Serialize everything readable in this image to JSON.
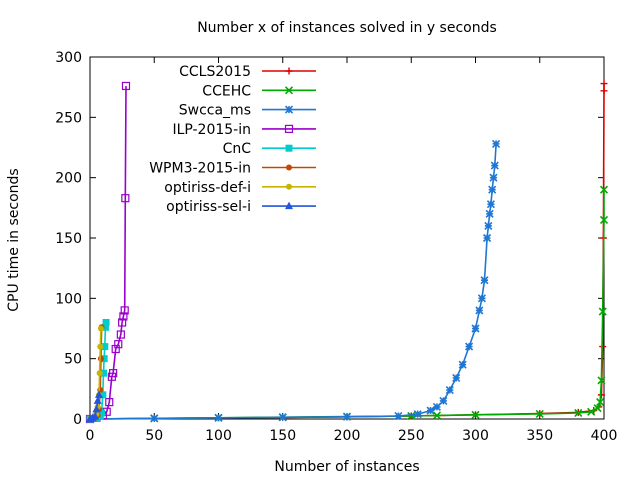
{
  "chart_data": {
    "type": "line",
    "title": "Number x of instances solved in y seconds",
    "xlabel": "Number of instances",
    "ylabel": "CPU time in seconds",
    "xlim": [
      0,
      400
    ],
    "ylim": [
      0,
      300
    ],
    "x_ticks": [
      0,
      50,
      100,
      150,
      200,
      250,
      300,
      350,
      400
    ],
    "y_ticks": [
      0,
      50,
      100,
      150,
      200,
      250,
      300
    ],
    "grid": false,
    "legend_position": "top-right",
    "series": [
      {
        "name": "CCLS2015",
        "color": "#dd0000",
        "marker": "plus",
        "points": [
          [
            0,
            0
          ],
          [
            50,
            0.5
          ],
          [
            100,
            0.9
          ],
          [
            150,
            1.3
          ],
          [
            200,
            1.8
          ],
          [
            250,
            2.5
          ],
          [
            300,
            3.5
          ],
          [
            350,
            4.5
          ],
          [
            380,
            5.5
          ],
          [
            392,
            7
          ],
          [
            396,
            10
          ],
          [
            398,
            20
          ],
          [
            399,
            60
          ],
          [
            399.5,
            150
          ],
          [
            400,
            272
          ],
          [
            400,
            278
          ]
        ]
      },
      {
        "name": "CCEHC",
        "color": "#00aa00",
        "marker": "x",
        "points": [
          [
            0,
            0
          ],
          [
            50,
            0.5
          ],
          [
            100,
            1
          ],
          [
            150,
            1.5
          ],
          [
            200,
            2
          ],
          [
            250,
            2.5
          ],
          [
            270,
            3
          ],
          [
            300,
            3.5
          ],
          [
            350,
            4.2
          ],
          [
            380,
            5
          ],
          [
            390,
            6
          ],
          [
            395,
            9
          ],
          [
            397,
            14
          ],
          [
            398,
            32
          ],
          [
            399,
            89
          ],
          [
            400,
            165
          ],
          [
            400,
            190
          ]
        ]
      },
      {
        "name": "Swcca_ms",
        "color": "#1f77d4",
        "marker": "star",
        "points": [
          [
            0,
            0
          ],
          [
            50,
            0.6
          ],
          [
            100,
            1
          ],
          [
            150,
            1.4
          ],
          [
            200,
            1.8
          ],
          [
            240,
            2.5
          ],
          [
            255,
            4
          ],
          [
            265,
            7
          ],
          [
            270,
            10
          ],
          [
            275,
            15
          ],
          [
            280,
            24
          ],
          [
            285,
            34
          ],
          [
            290,
            45
          ],
          [
            295,
            60
          ],
          [
            300,
            75
          ],
          [
            303,
            90
          ],
          [
            305,
            100
          ],
          [
            307,
            115
          ],
          [
            309,
            150
          ],
          [
            310,
            160
          ],
          [
            311,
            170
          ],
          [
            312,
            178
          ],
          [
            313,
            190
          ],
          [
            314,
            200
          ],
          [
            315,
            210
          ],
          [
            316,
            228
          ]
        ]
      },
      {
        "name": "ILP-2015-in",
        "color": "#9900cc",
        "marker": "square",
        "points": [
          [
            0,
            0
          ],
          [
            5,
            1
          ],
          [
            10,
            3
          ],
          [
            13,
            6
          ],
          [
            15,
            14
          ],
          [
            17,
            35
          ],
          [
            18,
            38
          ],
          [
            20,
            58
          ],
          [
            22,
            62
          ],
          [
            24,
            70
          ],
          [
            25,
            80
          ],
          [
            26,
            85
          ],
          [
            27,
            90
          ],
          [
            27.5,
            183
          ],
          [
            28,
            276
          ]
        ]
      },
      {
        "name": "CnC",
        "color": "#00cccc",
        "marker": "filled-square",
        "points": [
          [
            0,
            0
          ],
          [
            5,
            0.5
          ],
          [
            8,
            2
          ],
          [
            9,
            5
          ],
          [
            10,
            20
          ],
          [
            10.5,
            38
          ],
          [
            11,
            50
          ],
          [
            11.5,
            60
          ],
          [
            12,
            76
          ],
          [
            12.5,
            80
          ]
        ]
      },
      {
        "name": "WPM3-2015-in",
        "color": "#c04a00",
        "marker": "filled-circle",
        "points": [
          [
            0,
            0
          ],
          [
            4,
            1
          ],
          [
            6,
            3
          ],
          [
            7,
            8
          ],
          [
            8,
            24
          ],
          [
            8.5,
            50
          ],
          [
            9,
            76
          ]
        ]
      },
      {
        "name": "optiriss-def-i",
        "color": "#c8b400",
        "marker": "filled-circle",
        "points": [
          [
            0,
            0
          ],
          [
            3,
            1
          ],
          [
            5,
            4
          ],
          [
            6,
            10
          ],
          [
            7,
            20
          ],
          [
            7.5,
            38
          ],
          [
            8,
            60
          ],
          [
            8.5,
            75
          ]
        ]
      },
      {
        "name": "optiriss-sel-i",
        "color": "#2255dd",
        "marker": "triangle",
        "points": [
          [
            0,
            0
          ],
          [
            2,
            0.5
          ],
          [
            4,
            2
          ],
          [
            5,
            8
          ],
          [
            6,
            15
          ],
          [
            7,
            20
          ]
        ]
      }
    ]
  }
}
